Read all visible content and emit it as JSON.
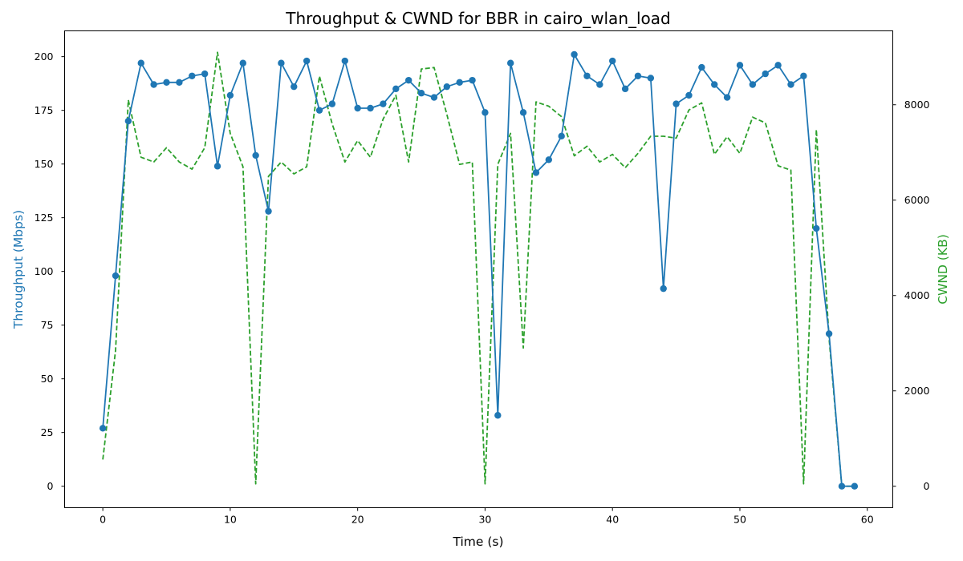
{
  "chart_data": {
    "type": "line",
    "title": "Throughput & CWND for BBR in cairo_wlan_load",
    "xlabel": "Time (s)",
    "ylabel_left": "Throughput (Mbps)",
    "ylabel_right": "CWND (KB)",
    "xlim": [
      -3,
      62
    ],
    "ylim_left": [
      -10,
      212
    ],
    "ylim_right": [
      -450,
      9550
    ],
    "x_ticks": [
      0,
      10,
      20,
      30,
      40,
      50,
      60
    ],
    "y_left_ticks": [
      0,
      25,
      50,
      75,
      100,
      125,
      150,
      175,
      200
    ],
    "y_right_ticks": [
      0,
      2000,
      4000,
      6000,
      8000
    ],
    "grid": false,
    "colors": {
      "throughput": "#1f77b4",
      "cwnd": "#2ca02c",
      "axis": "#000000"
    },
    "x": [
      0,
      1,
      2,
      3,
      4,
      5,
      6,
      7,
      8,
      9,
      10,
      11,
      12,
      13,
      14,
      15,
      16,
      17,
      18,
      19,
      20,
      21,
      22,
      23,
      24,
      25,
      26,
      27,
      28,
      29,
      30,
      31,
      32,
      33,
      34,
      35,
      36,
      37,
      38,
      39,
      40,
      41,
      42,
      43,
      44,
      45,
      46,
      47,
      48,
      49,
      50,
      51,
      52,
      53,
      54,
      55,
      56,
      57,
      58,
      59
    ],
    "series": [
      {
        "key": "throughput",
        "axis": "left",
        "style": "solid-marker",
        "values": [
          27,
          98,
          170,
          197,
          187,
          188,
          188,
          191,
          192,
          149,
          182,
          197,
          154,
          128,
          197,
          186,
          198,
          175,
          178,
          198,
          176,
          176,
          178,
          185,
          189,
          183,
          181,
          186,
          188,
          189,
          174,
          33,
          197,
          174,
          146,
          152,
          163,
          201,
          191,
          187,
          198,
          185,
          191,
          190,
          92,
          178,
          182,
          195,
          187,
          181,
          196,
          187,
          192,
          196,
          187,
          191,
          120,
          71,
          0,
          0
        ]
      },
      {
        "key": "cwnd",
        "axis": "right",
        "style": "dashed",
        "values": [
          560,
          2850,
          8100,
          6900,
          6800,
          7100,
          6800,
          6650,
          7100,
          9100,
          7400,
          6700,
          50,
          6500,
          6800,
          6550,
          6700,
          8600,
          7600,
          6800,
          7250,
          6900,
          7700,
          8200,
          6800,
          8750,
          8780,
          7800,
          6750,
          6800,
          50,
          6750,
          7400,
          2900,
          8060,
          7970,
          7750,
          6930,
          7130,
          6800,
          6960,
          6680,
          6980,
          7340,
          7340,
          7300,
          7890,
          8040,
          6960,
          7330,
          6980,
          7740,
          7620,
          6720,
          6630,
          50,
          7480,
          3100,
          0,
          0
        ]
      }
    ]
  }
}
